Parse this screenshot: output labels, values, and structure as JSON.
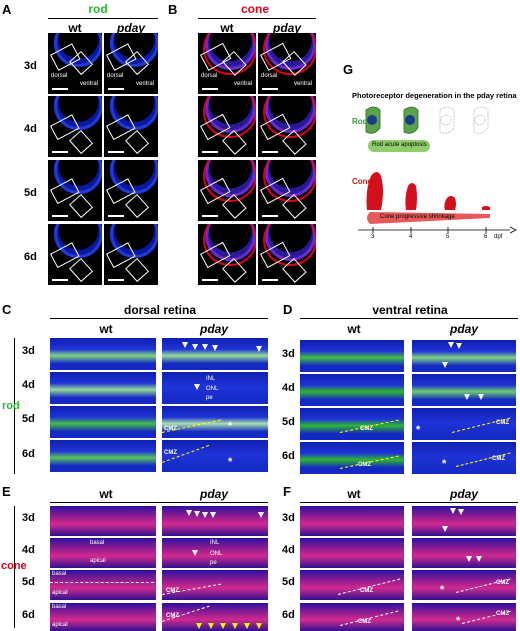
{
  "panels": {
    "A": {
      "letter": "A",
      "title": "rod",
      "cols": [
        "wt",
        "pday"
      ]
    },
    "B": {
      "letter": "B",
      "title": "cone",
      "cols": [
        "wt",
        "pday"
      ]
    },
    "G": {
      "letter": "G"
    },
    "C": {
      "letter": "C",
      "title": "dorsal retina",
      "cols": [
        "wt",
        "pday"
      ]
    },
    "D": {
      "letter": "D",
      "title": "ventral retina",
      "cols": [
        "wt",
        "pday"
      ]
    },
    "E": {
      "letter": "E",
      "cols": [
        "wt",
        "pday"
      ]
    },
    "F": {
      "letter": "F",
      "cols": [
        "wt",
        "pday"
      ]
    }
  },
  "days": [
    "3d",
    "4d",
    "5d",
    "6d"
  ],
  "side_labels": {
    "rod": "rod",
    "cone": "cone"
  },
  "micro_labels": {
    "dorsal": "dorsal",
    "ventral": "ventral"
  },
  "strip_labels": {
    "inl": "INL",
    "onl": "ONL",
    "pe": "pe",
    "cmz": "CMZ",
    "basal": "basal",
    "apical": "apical",
    "star": "*"
  },
  "schematic": {
    "title": "Photoreceptor degeneration in the pday retina",
    "rods_label": "Rods",
    "rod_process": "Rod acute apoptosis",
    "cones_label": "Cones",
    "cone_process": "Cone progressive shrinkage",
    "ticks": [
      "3",
      "4",
      "5",
      "6"
    ],
    "tick_unit": "dpf"
  },
  "colors": {
    "rod_green": "#2eb82e",
    "cone_red": "#e0001b",
    "dapi_blue": "#1a2bd6",
    "rod_cell": "#5aa34a",
    "rod_bar": "#8fcf6b",
    "cone_bar": "#e85a5a"
  }
}
